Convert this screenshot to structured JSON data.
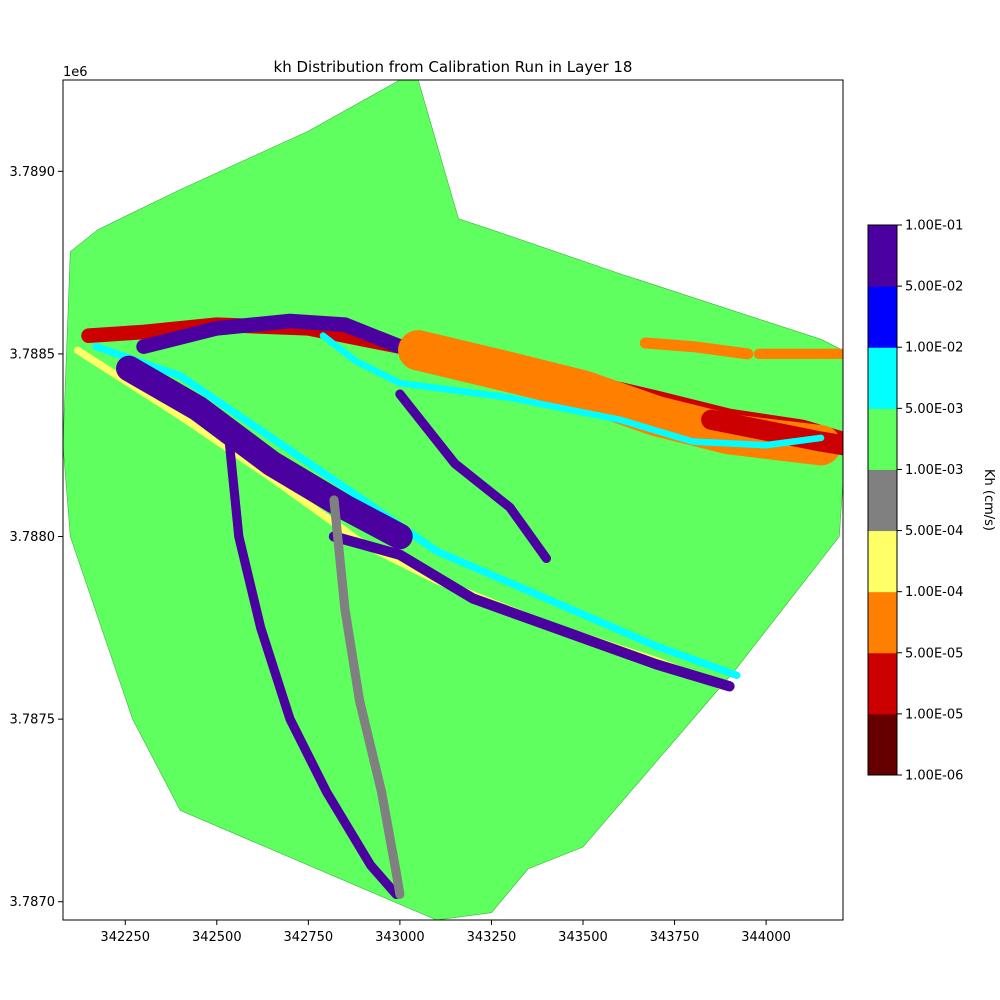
{
  "chart_data": {
    "type": "heatmap",
    "title": "kh Distribution from Calibration Run in Layer 18",
    "xlabel": "",
    "ylabel": "",
    "y_offset_label": "1e6",
    "xlim": [
      342080,
      344210
    ],
    "ylim": [
      3786950,
      3789250
    ],
    "x_ticks": [
      342250,
      342500,
      342750,
      343000,
      343250,
      343500,
      343750,
      344000
    ],
    "x_tick_labels": [
      "342250",
      "342500",
      "342750",
      "343000",
      "343250",
      "343500",
      "343750",
      "344000"
    ],
    "y_ticks": [
      3787000,
      3787500,
      3788000,
      3788500,
      3789000
    ],
    "y_tick_labels": [
      "3.7870",
      "3.7875",
      "3.7880",
      "3.7885",
      "3.7890"
    ],
    "grid": false,
    "colorbar": {
      "label": "Kh (cm/s)",
      "levels": [
        {
          "lower": "1.00E-06",
          "upper": "1.00E-05",
          "color": "#660000"
        },
        {
          "lower": "1.00E-05",
          "upper": "5.00E-05",
          "color": "#cc0000"
        },
        {
          "lower": "5.00E-05",
          "upper": "1.00E-04",
          "color": "#ff7f00"
        },
        {
          "lower": "1.00E-04",
          "upper": "5.00E-04",
          "color": "#ffff66"
        },
        {
          "lower": "5.00E-04",
          "upper": "1.00E-03",
          "color": "#808080"
        },
        {
          "lower": "1.00E-03",
          "upper": "5.00E-03",
          "color": "#5eff5e"
        },
        {
          "lower": "5.00E-03",
          "upper": "1.00E-02",
          "color": "#00ffff"
        },
        {
          "lower": "1.00E-02",
          "upper": "5.00E-02",
          "color": "#0000ff"
        },
        {
          "lower": "5.00E-02",
          "upper": "1.00E-01",
          "color": "#4b00a0"
        }
      ],
      "tick_labels": [
        "1.00E-06",
        "1.00E-05",
        "5.00E-05",
        "1.00E-04",
        "5.00E-04",
        "1.00E-03",
        "5.00E-03",
        "1.00E-02",
        "5.00E-02",
        "1.00E-01"
      ]
    },
    "domain_boundary": [
      [
        342100,
        3788780
      ],
      [
        342175,
        3788840
      ],
      [
        342400,
        3788950
      ],
      [
        342750,
        3789110
      ],
      [
        343000,
        3789250
      ],
      [
        343050,
        3789250
      ],
      [
        343160,
        3788870
      ],
      [
        343250,
        3788840
      ],
      [
        343600,
        3788720
      ],
      [
        344150,
        3788540
      ],
      [
        344210,
        3788510
      ],
      [
        344210,
        3788150
      ],
      [
        344200,
        3788000
      ],
      [
        343920,
        3787640
      ],
      [
        343500,
        3787150
      ],
      [
        343350,
        3787090
      ],
      [
        343250,
        3786970
      ],
      [
        343100,
        3786950
      ],
      [
        342400,
        3787250
      ],
      [
        342270,
        3787500
      ],
      [
        342100,
        3788000
      ],
      [
        342080,
        3788250
      ]
    ],
    "zones": [
      {
        "name": "north-clay-red",
        "class": "1.00E-05",
        "width_m": 40,
        "points": [
          [
            342150,
            3788550
          ],
          [
            342300,
            3788560
          ],
          [
            342500,
            3788580
          ],
          [
            342750,
            3788570
          ],
          [
            343000,
            3788520
          ],
          [
            343400,
            3788450
          ],
          [
            343700,
            3788380
          ],
          [
            343900,
            3788330
          ],
          [
            344100,
            3788300
          ],
          [
            344200,
            3788270
          ]
        ]
      },
      {
        "name": "north-arc-purple",
        "class": "5.00E-02",
        "width_m": 40,
        "points": [
          [
            342300,
            3788520
          ],
          [
            342500,
            3788570
          ],
          [
            342700,
            3788590
          ],
          [
            342850,
            3788580
          ],
          [
            343000,
            3788520
          ]
        ]
      },
      {
        "name": "east-lens-orange",
        "class": "5.00E-05",
        "width_m": 110,
        "points": [
          [
            343050,
            3788510
          ],
          [
            343300,
            3788450
          ],
          [
            343500,
            3788400
          ],
          [
            343700,
            3788330
          ],
          [
            343900,
            3788280
          ],
          [
            344150,
            3788250
          ]
        ]
      },
      {
        "name": "east-lens-red",
        "class": "1.00E-05",
        "width_m": 55,
        "points": [
          [
            343850,
            3788320
          ],
          [
            344000,
            3788290
          ],
          [
            344150,
            3788260
          ],
          [
            344210,
            3788250
          ]
        ]
      },
      {
        "name": "east-strip-orange-1",
        "class": "5.00E-05",
        "width_m": 30,
        "points": [
          [
            343670,
            3788530
          ],
          [
            343800,
            3788520
          ],
          [
            343950,
            3788500
          ]
        ]
      },
      {
        "name": "east-strip-orange-2",
        "class": "5.00E-05",
        "width_m": 28,
        "points": [
          [
            343980,
            3788500
          ],
          [
            344100,
            3788500
          ],
          [
            344210,
            3788500
          ]
        ]
      },
      {
        "name": "cyan-channel",
        "class": "5.00E-03",
        "width_m": 18,
        "points": [
          [
            342790,
            3788550
          ],
          [
            342880,
            3788480
          ],
          [
            343000,
            3788420
          ],
          [
            343300,
            3788380
          ],
          [
            343600,
            3788320
          ],
          [
            343800,
            3788260
          ],
          [
            344000,
            3788250
          ],
          [
            344150,
            3788270
          ]
        ]
      },
      {
        "name": "cyan-band",
        "class": "5.00E-03",
        "width_m": 20,
        "points": [
          [
            342170,
            3788520
          ],
          [
            342400,
            3788440
          ],
          [
            342650,
            3788270
          ],
          [
            342900,
            3788100
          ],
          [
            343100,
            3787960
          ],
          [
            343400,
            3787830
          ],
          [
            343700,
            3787700
          ],
          [
            343920,
            3787620
          ]
        ]
      },
      {
        "name": "yellow-band",
        "class": "1.00E-04",
        "width_m": 20,
        "points": [
          [
            342120,
            3788510
          ],
          [
            342400,
            3788330
          ],
          [
            342650,
            3788160
          ],
          [
            342900,
            3787980
          ],
          [
            343100,
            3787880
          ],
          [
            343400,
            3787760
          ],
          [
            343700,
            3787660
          ],
          [
            343880,
            3787590
          ]
        ]
      },
      {
        "name": "purple-main-band",
        "class": "5.00E-02",
        "width_m": 70,
        "points": [
          [
            342260,
            3788460
          ],
          [
            342450,
            3788350
          ],
          [
            342650,
            3788200
          ],
          [
            342850,
            3788080
          ],
          [
            343000,
            3788000
          ]
        ]
      },
      {
        "name": "purple-lower-band",
        "class": "5.00E-02",
        "width_m": 28,
        "points": [
          [
            342820,
            3788000
          ],
          [
            343000,
            3787950
          ],
          [
            343200,
            3787830
          ],
          [
            343450,
            3787740
          ],
          [
            343700,
            3787650
          ],
          [
            343900,
            3787590
          ]
        ]
      },
      {
        "name": "purple-northeast-branch",
        "class": "5.00E-02",
        "width_m": 25,
        "points": [
          [
            343000,
            3788390
          ],
          [
            343150,
            3788200
          ],
          [
            343300,
            3788080
          ],
          [
            343400,
            3787940
          ]
        ]
      },
      {
        "name": "purple-west-fault",
        "class": "5.00E-02",
        "width_m": 25,
        "points": [
          [
            342530,
            3788300
          ],
          [
            342560,
            3788000
          ],
          [
            342620,
            3787750
          ],
          [
            342700,
            3787500
          ],
          [
            342800,
            3787300
          ],
          [
            342920,
            3787100
          ],
          [
            342990,
            3787020
          ]
        ]
      },
      {
        "name": "gray-fault",
        "class": "5.00E-04",
        "width_m": 25,
        "points": [
          [
            342820,
            3788100
          ],
          [
            342850,
            3787800
          ],
          [
            342890,
            3787550
          ],
          [
            342950,
            3787300
          ],
          [
            342990,
            3787080
          ],
          [
            343000,
            3787020
          ]
        ]
      }
    ]
  }
}
